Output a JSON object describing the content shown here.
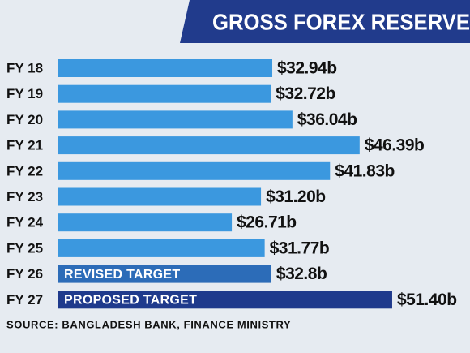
{
  "chart_data": {
    "type": "bar",
    "orientation": "horizontal",
    "title": "GROSS FOREX RESERVE",
    "categories": [
      "FY 18",
      "FY 19",
      "FY 20",
      "FY 21",
      "FY 22",
      "FY 23",
      "FY 24",
      "FY 25",
      "FY 26",
      "FY 27"
    ],
    "values": [
      32.94,
      32.72,
      36.04,
      46.39,
      41.83,
      31.2,
      26.71,
      31.77,
      32.8,
      51.4
    ],
    "value_labels": [
      "$32.94b",
      "$32.72b",
      "$36.04b",
      "$46.39b",
      "$41.83b",
      "$31.20b",
      "$26.71b",
      "$31.77b",
      "$32.8b",
      "$51.40b"
    ],
    "colors": [
      "#3b98df",
      "#3b98df",
      "#3b98df",
      "#3b98df",
      "#3b98df",
      "#3b98df",
      "#3b98df",
      "#3b98df",
      "#2c6cb8",
      "#1f3a8c"
    ],
    "bar_labels": [
      null,
      null,
      null,
      null,
      null,
      null,
      null,
      null,
      "REVISED TARGET",
      "PROPOSED TARGET"
    ],
    "source": "SOURCE: BANGLADESH BANK, FINANCE MINISTRY"
  }
}
